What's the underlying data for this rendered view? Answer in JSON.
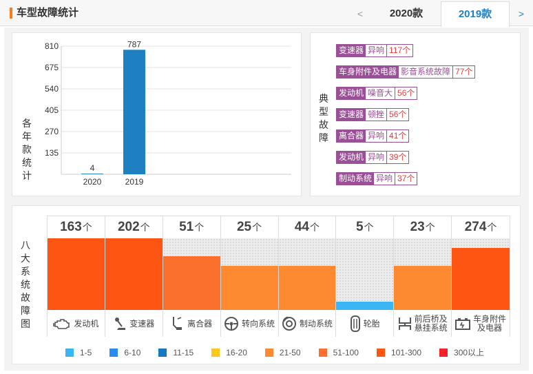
{
  "header": {
    "title": "车型故障统计",
    "prev_label": "<",
    "next_label": ">",
    "year_tabs": [
      {
        "label": "2020款",
        "active": false
      },
      {
        "label": "2019款",
        "active": true
      }
    ]
  },
  "year_chart": {
    "side_label": [
      "各",
      "年",
      "款",
      "统",
      "计"
    ],
    "chart_data": {
      "type": "bar",
      "categories": [
        "2020",
        "2019"
      ],
      "values": [
        4,
        787
      ],
      "ylim": [
        0,
        810
      ],
      "yticks": [
        135,
        270,
        405,
        540,
        675,
        810
      ],
      "grid": true,
      "bar_color": "#1e7fc1"
    }
  },
  "typical_faults": {
    "side_label": [
      "典",
      "型",
      "故",
      "障"
    ],
    "items": [
      {
        "system": "变速器",
        "symptom": "异响",
        "count": "117个"
      },
      {
        "system": "车身附件及电器",
        "symptom": "影音系统故障",
        "count": "77个"
      },
      {
        "system": "发动机",
        "symptom": "噪音大",
        "count": "56个"
      },
      {
        "system": "变速器",
        "symptom": "顿挫",
        "count": "56个"
      },
      {
        "system": "离合器",
        "symptom": "异响",
        "count": "41个"
      },
      {
        "system": "发动机",
        "symptom": "异响",
        "count": "39个"
      },
      {
        "system": "制动系统",
        "symptom": "异响",
        "count": "37个"
      }
    ]
  },
  "systems": {
    "side_label": [
      "八",
      "大",
      "系",
      "统",
      "故",
      "障",
      "图"
    ],
    "unit": "个",
    "items": [
      {
        "name": "发动机",
        "count": "163",
        "level": 1.0,
        "color": "#fe5512",
        "icon": "engine-icon"
      },
      {
        "name": "变速器",
        "count": "202",
        "level": 1.0,
        "color": "#fe5512",
        "icon": "gearshift-icon"
      },
      {
        "name": "离合器",
        "count": "51",
        "level": 0.75,
        "color": "#fb702d",
        "icon": "clutch-pedal-icon"
      },
      {
        "name": "转向系统",
        "count": "25",
        "level": 0.62,
        "color": "#fd8a30",
        "icon": "steering-wheel-icon"
      },
      {
        "name": "制动系统",
        "count": "44",
        "level": 0.62,
        "color": "#fd8a30",
        "icon": "brake-disc-icon"
      },
      {
        "name": "轮胎",
        "count": "5",
        "level": 0.12,
        "color": "#3bb5f3",
        "icon": "tire-icon"
      },
      {
        "name": "前后桥及悬挂系统",
        "name_lines": [
          "前后桥及",
          "悬挂系统"
        ],
        "count": "23",
        "level": 0.62,
        "color": "#fd8a30",
        "icon": "suspension-icon"
      },
      {
        "name": "车身附件及电器",
        "name_lines": [
          "车身附件",
          "及电器"
        ],
        "count": "274",
        "level": 0.87,
        "color": "#fe5512",
        "icon": "battery-icon"
      }
    ]
  },
  "legend": [
    {
      "label": "1-5",
      "color": "#3bb5f3"
    },
    {
      "label": "6-10",
      "color": "#2a8cf0"
    },
    {
      "label": "11-15",
      "color": "#1279c4"
    },
    {
      "label": "16-20",
      "color": "#fdc81c"
    },
    {
      "label": "21-50",
      "color": "#fd8a30"
    },
    {
      "label": "51-100",
      "color": "#fb702d"
    },
    {
      "label": "101-300",
      "color": "#fe5512"
    },
    {
      "label": "300以上",
      "color": "#f7212a"
    }
  ]
}
